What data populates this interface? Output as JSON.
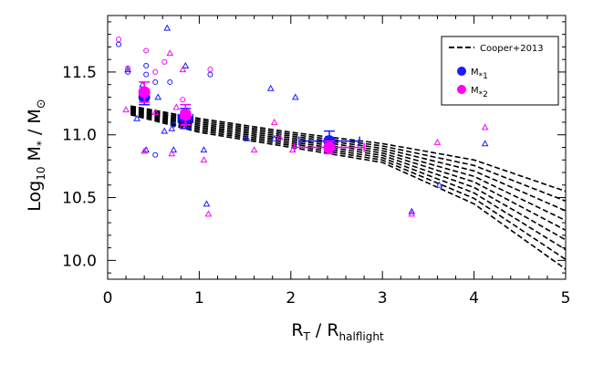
{
  "chart_data": {
    "type": "scatter",
    "xlabel": "R_T / R_halflight",
    "ylabel": "Log10 M* / M⊙",
    "xlim": [
      0,
      5
    ],
    "ylim": [
      9.85,
      11.95
    ],
    "x_ticks": [
      "0",
      "1",
      "2",
      "3",
      "4",
      "5"
    ],
    "y_ticks": [
      "10.0",
      "10.5",
      "11.0",
      "11.5"
    ],
    "grid": false,
    "legend_position": "top-right",
    "colors": {
      "m1": "#1a1aff",
      "m2": "#ff00ff",
      "band": "#000000"
    },
    "legend": [
      {
        "key": "cooper",
        "label": "Cooper+2013",
        "marker": "dashed-line"
      },
      {
        "key": "m1",
        "label": "M*1",
        "marker": "filled-circle"
      },
      {
        "key": "m2",
        "label": "M*2",
        "marker": "filled-circle"
      }
    ],
    "cooper_band": {
      "x": [
        0.25,
        1,
        2,
        3,
        4,
        5
      ],
      "y_upper": [
        11.23,
        11.13,
        11.02,
        10.93,
        10.8,
        10.55
      ],
      "y_lower": [
        11.16,
        11.02,
        10.9,
        10.78,
        10.45,
        9.93
      ]
    },
    "series": [
      {
        "name": "M*1",
        "color": "#1a1aff",
        "circles": [
          [
            0.12,
            11.72
          ],
          [
            0.22,
            11.5
          ],
          [
            0.42,
            11.48
          ],
          [
            0.42,
            11.55
          ],
          [
            0.52,
            11.42
          ],
          [
            0.52,
            10.84
          ],
          [
            0.68,
            11.42
          ],
          [
            0.72,
            11.08
          ],
          [
            0.82,
            11.18
          ],
          [
            1.12,
            11.48
          ]
        ],
        "triangles": [
          [
            0.22,
            11.52
          ],
          [
            0.32,
            11.13
          ],
          [
            0.38,
            11.4
          ],
          [
            0.42,
            10.88
          ],
          [
            0.55,
            11.3
          ],
          [
            0.62,
            11.03
          ],
          [
            0.65,
            11.85
          ],
          [
            0.7,
            11.05
          ],
          [
            0.72,
            10.88
          ],
          [
            0.85,
            11.55
          ],
          [
            1.05,
            10.88
          ],
          [
            1.08,
            10.45
          ],
          [
            1.52,
            10.97
          ],
          [
            1.78,
            11.37
          ],
          [
            1.82,
            10.97
          ],
          [
            2.05,
            11.3
          ],
          [
            3.32,
            10.39
          ],
          [
            3.62,
            10.6
          ],
          [
            4.12,
            10.93
          ]
        ],
        "means": [
          {
            "x": 0.4,
            "y": 11.3,
            "xerr": 0.03,
            "yerr": 0.06
          },
          {
            "x": 0.85,
            "y": 11.13,
            "xerr": 0.08,
            "yerr": 0.08
          },
          {
            "x": 2.42,
            "y": 10.95,
            "xerr": 0.33,
            "yerr": 0.08
          }
        ]
      },
      {
        "name": "M*2",
        "color": "#ff00ff",
        "circles": [
          [
            0.12,
            11.76
          ],
          [
            0.22,
            11.53
          ],
          [
            0.42,
            11.67
          ],
          [
            0.52,
            11.5
          ],
          [
            0.62,
            11.58
          ],
          [
            0.82,
            11.28
          ],
          [
            1.12,
            11.52
          ]
        ],
        "triangles": [
          [
            0.2,
            11.2
          ],
          [
            0.4,
            10.87
          ],
          [
            0.52,
            11.18
          ],
          [
            0.68,
            11.65
          ],
          [
            0.7,
            10.85
          ],
          [
            0.75,
            11.22
          ],
          [
            0.82,
            11.52
          ],
          [
            0.82,
            11.07
          ],
          [
            1.05,
            10.8
          ],
          [
            1.1,
            10.37
          ],
          [
            1.6,
            10.88
          ],
          [
            1.82,
            11.1
          ],
          [
            1.88,
            10.98
          ],
          [
            2.02,
            10.88
          ],
          [
            3.32,
            10.37
          ],
          [
            3.6,
            10.94
          ],
          [
            4.12,
            11.06
          ]
        ],
        "means": [
          {
            "x": 0.4,
            "y": 11.34,
            "xerr": 0.03,
            "yerr": 0.08
          },
          {
            "x": 0.85,
            "y": 11.16,
            "xerr": 0.05,
            "yerr": 0.08
          },
          {
            "x": 2.42,
            "y": 10.9,
            "xerr": 0.38,
            "yerr": 0.05
          }
        ]
      }
    ]
  }
}
